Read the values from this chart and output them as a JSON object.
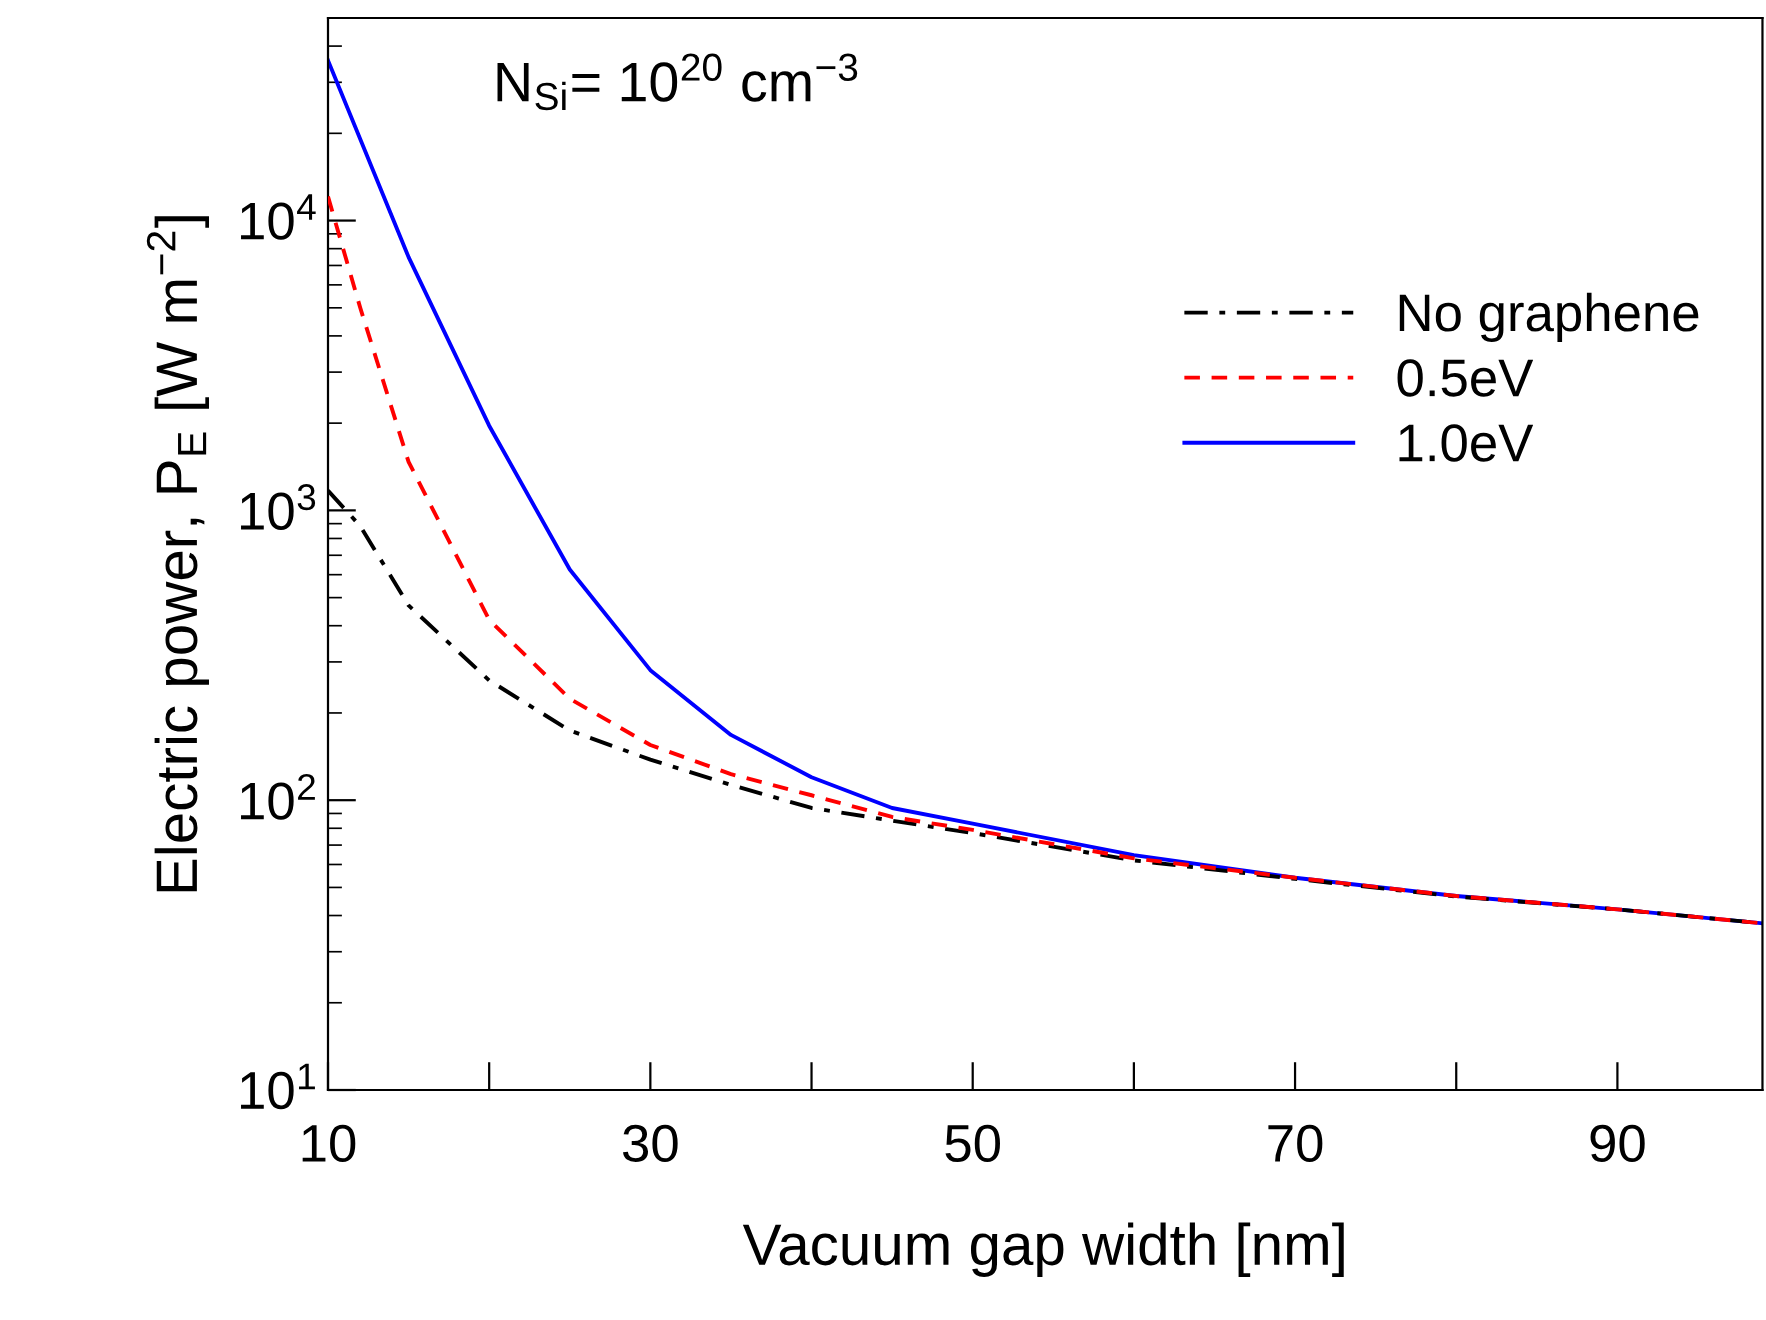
{
  "chart_data": {
    "type": "line",
    "xlabel": "Vacuum gap width [nm]",
    "ylabel": "Electric power, P$_{E}$ [W m$^{−2}$]",
    "annotations": [
      "N$_{Si}$= 10$^{20}$ cm$^{−3}$"
    ],
    "log": "y",
    "xlim": [
      10,
      99
    ],
    "ylim": [
      10,
      50000
    ],
    "xticks": [
      10,
      {
        "value": 20,
        "label": null
      },
      30,
      {
        "value": 40,
        "label": null
      },
      50,
      {
        "value": 60,
        "label": null
      },
      70,
      {
        "value": 80,
        "label": null
      },
      90
    ],
    "yticks": [
      {
        "value": 10,
        "label": "10$^{1}$"
      },
      {
        "value": 100,
        "label": "10$^{2}$"
      },
      {
        "value": 1000,
        "label": "10$^{3}$"
      },
      {
        "value": 10000,
        "label": "10$^{4}$"
      }
    ],
    "grid": false,
    "legend": "right",
    "marker": "none",
    "series": [
      {
        "name": "No graphene",
        "color": "#000000",
        "line_style": "dashdot",
        "x": [
          10,
          12,
          15,
          20,
          25,
          30,
          35,
          40,
          45,
          50,
          60,
          70,
          80,
          90,
          99
        ],
        "values": [
          1170,
          883,
          470,
          259,
          174,
          138,
          113,
          94,
          85,
          77,
          62,
          53.5,
          46.5,
          42,
          37.6
        ]
      },
      {
        "name": "0.5eV",
        "color": "#ff0000",
        "line_style": "dashed",
        "x": [
          10,
          12,
          15,
          20,
          25,
          30,
          35,
          40,
          45,
          50,
          60,
          70,
          80,
          90,
          99
        ],
        "values": [
          12100,
          5000,
          1470,
          419,
          224,
          155,
          123,
          104,
          87.5,
          79,
          63,
          54,
          46.7,
          42,
          37.6
        ]
      },
      {
        "name": "1.0eV",
        "color": "#0000ff",
        "line_style": "solid",
        "x": [
          10,
          15,
          20,
          25,
          30,
          35,
          40,
          45,
          50,
          60,
          70,
          80,
          90,
          99
        ],
        "values": [
          35700,
          7480,
          1960,
          625,
          281,
          168,
          120,
          94,
          83,
          64.6,
          54,
          46.7,
          42,
          37.6
        ]
      }
    ]
  }
}
